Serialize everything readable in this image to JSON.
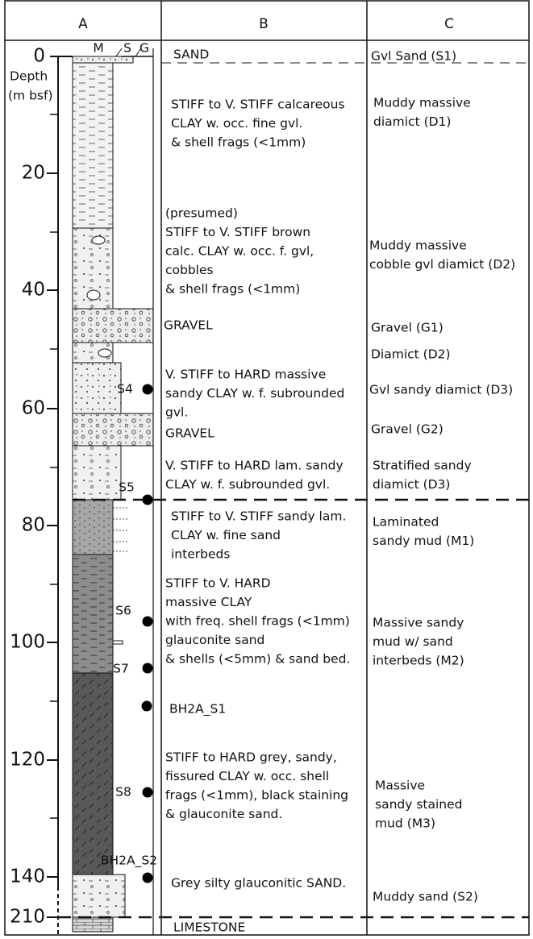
{
  "header": {
    "columns": [
      "A",
      "B",
      "C"
    ]
  },
  "column_a": {
    "lith_labels": [
      "M",
      "S",
      "G"
    ],
    "axis_title": [
      "Depth",
      "(m bsf)"
    ],
    "depth_ticks": [
      0,
      20,
      40,
      60,
      80,
      100,
      120,
      140,
      210
    ],
    "samples": [
      "S4",
      "S5",
      "S6",
      "S7",
      "BH2A_S1",
      "S8",
      "BH2A_S2"
    ]
  },
  "column_b": {
    "descriptions": [
      {
        "lines": [
          "SAND"
        ]
      },
      {
        "lines": [
          "STIFF to V. STIFF calcareous",
          "CLAY w. occ. fine gvl.",
          "& shell frags (<1mm)"
        ]
      },
      {
        "lines": [
          "(presumed)",
          "STIFF to V. STIFF  brown",
          "calc. CLAY w. occ. f. gvl,",
          "cobbles",
          "& shell frags (<1mm)"
        ]
      },
      {
        "lines": [
          "GRAVEL"
        ]
      },
      {
        "lines": [
          "V. STIFF to HARD massive",
          "sandy CLAY w. f. subrounded",
          "gvl."
        ]
      },
      {
        "lines": [
          "GRAVEL"
        ]
      },
      {
        "lines": [
          "V. STIFF to HARD lam. sandy",
          "CLAY w. f. subrounded gvl."
        ]
      },
      {
        "lines": [
          "STIFF to V. STIFF sandy lam.",
          "CLAY w. fine sand",
          "interbeds"
        ]
      },
      {
        "lines": [
          "STIFF to V. HARD",
          "massive CLAY",
          "with freq. shell frags (<1mm)",
          "glauconite sand",
          "& shells (<5mm) & sand bed."
        ]
      },
      {
        "lines": [
          "STIFF to HARD grey, sandy,",
          "fissured CLAY w. occ. shell",
          "frags (<1mm), black staining",
          "& glauconite sand."
        ]
      },
      {
        "lines": [
          "Grey silty glauconitic SAND."
        ]
      },
      {
        "lines": [
          "LIMESTONE"
        ]
      }
    ]
  },
  "column_c": {
    "units": [
      {
        "lines": [
          "Gvl Sand (S1)"
        ]
      },
      {
        "lines": [
          "Muddy massive",
          "diamict (D1)"
        ]
      },
      {
        "lines": [
          "Muddy massive",
          "cobble gvl diamict (D2)"
        ]
      },
      {
        "lines": [
          "Gravel (G1)"
        ]
      },
      {
        "lines": [
          "Diamict (D2)"
        ]
      },
      {
        "lines": [
          "Gvl sandy diamict (D3)"
        ]
      },
      {
        "lines": [
          "Gravel (G2)"
        ]
      },
      {
        "lines": [
          "Stratified sandy",
          "diamict (D3)"
        ]
      },
      {
        "lines": [
          "Laminated",
          "sandy mud (M1)"
        ]
      },
      {
        "lines": [
          "Massive sandy",
          "mud w/ sand",
          "interbeds (M2)"
        ]
      },
      {
        "lines": [
          "Massive",
          "sandy stained",
          "mud (M3)"
        ]
      },
      {
        "lines": [
          "Muddy sand (S2)"
        ]
      }
    ]
  }
}
